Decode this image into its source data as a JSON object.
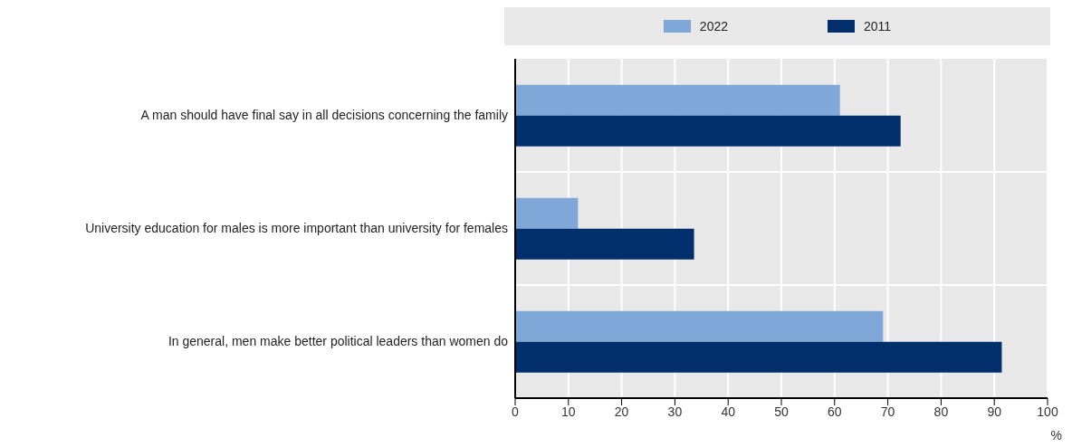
{
  "chart_data": {
    "type": "bar",
    "orientation": "horizontal",
    "categories": [
      "A man should have final say in all decisions concerning the family",
      "University education for males is more important than university for females",
      "In general, men make better political leaders than women do"
    ],
    "series": [
      {
        "name": "2022",
        "color": "#7fa8d9",
        "values": [
          61.0,
          11.8,
          69.1
        ]
      },
      {
        "name": "2011",
        "color": "#002f6c",
        "values": [
          72.4,
          33.6,
          91.4
        ]
      }
    ],
    "xlabel": "%",
    "xlim": [
      0,
      100
    ],
    "xticks": [
      0,
      10,
      20,
      30,
      40,
      50,
      60,
      70,
      80,
      90,
      100
    ],
    "grid": true,
    "legend": "top"
  }
}
